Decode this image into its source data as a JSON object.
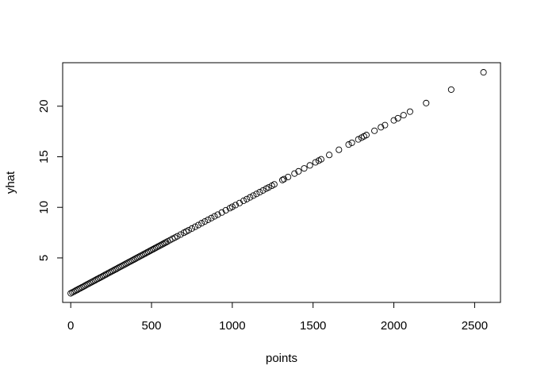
{
  "chart_data": {
    "type": "scatter",
    "title": "",
    "xlabel": "points",
    "ylabel": "yhat",
    "xlim": [
      -50,
      2660
    ],
    "ylim": [
      0.6,
      24.3
    ],
    "x_ticks": [
      0,
      500,
      1000,
      1500,
      2000,
      2500
    ],
    "y_ticks": [
      5,
      10,
      15,
      20
    ],
    "x_tick_labels": [
      "0",
      "500",
      "1000",
      "1500",
      "2000",
      "2500"
    ],
    "y_tick_labels": [
      "5",
      "10",
      "15",
      "20"
    ],
    "grid": false,
    "marker": "open-circle",
    "line": {
      "intercept": 1.5,
      "slope": 0.00855
    },
    "points": [
      [
        0,
        1.5
      ],
      [
        10,
        1.59
      ],
      [
        20,
        1.67
      ],
      [
        30,
        1.76
      ],
      [
        40,
        1.84
      ],
      [
        50,
        1.93
      ],
      [
        60,
        2.01
      ],
      [
        70,
        2.1
      ],
      [
        80,
        2.18
      ],
      [
        90,
        2.27
      ],
      [
        100,
        2.36
      ],
      [
        110,
        2.44
      ],
      [
        120,
        2.53
      ],
      [
        130,
        2.61
      ],
      [
        140,
        2.7
      ],
      [
        150,
        2.78
      ],
      [
        160,
        2.87
      ],
      [
        170,
        2.95
      ],
      [
        180,
        3.04
      ],
      [
        190,
        3.12
      ],
      [
        200,
        3.21
      ],
      [
        210,
        3.3
      ],
      [
        220,
        3.38
      ],
      [
        230,
        3.47
      ],
      [
        240,
        3.55
      ],
      [
        250,
        3.64
      ],
      [
        260,
        3.72
      ],
      [
        270,
        3.81
      ],
      [
        280,
        3.89
      ],
      [
        290,
        3.98
      ],
      [
        300,
        4.07
      ],
      [
        310,
        4.15
      ],
      [
        320,
        4.24
      ],
      [
        330,
        4.32
      ],
      [
        340,
        4.41
      ],
      [
        350,
        4.49
      ],
      [
        360,
        4.58
      ],
      [
        370,
        4.66
      ],
      [
        380,
        4.75
      ],
      [
        390,
        4.83
      ],
      [
        400,
        4.92
      ],
      [
        410,
        5.01
      ],
      [
        420,
        5.09
      ],
      [
        430,
        5.18
      ],
      [
        440,
        5.26
      ],
      [
        450,
        5.35
      ],
      [
        460,
        5.43
      ],
      [
        470,
        5.52
      ],
      [
        480,
        5.6
      ],
      [
        490,
        5.69
      ],
      [
        500,
        5.78
      ],
      [
        510,
        5.86
      ],
      [
        520,
        5.95
      ],
      [
        530,
        6.03
      ],
      [
        540,
        6.12
      ],
      [
        550,
        6.2
      ],
      [
        560,
        6.29
      ],
      [
        570,
        6.37
      ],
      [
        580,
        6.46
      ],
      [
        590,
        6.54
      ],
      [
        600,
        6.63
      ],
      [
        615,
        6.76
      ],
      [
        630,
        6.89
      ],
      [
        645,
        7.01
      ],
      [
        660,
        7.14
      ],
      [
        680,
        7.31
      ],
      [
        700,
        7.49
      ],
      [
        715,
        7.61
      ],
      [
        730,
        7.74
      ],
      [
        750,
        7.91
      ],
      [
        770,
        8.08
      ],
      [
        790,
        8.25
      ],
      [
        810,
        8.43
      ],
      [
        830,
        8.6
      ],
      [
        850,
        8.77
      ],
      [
        870,
        8.94
      ],
      [
        890,
        9.11
      ],
      [
        910,
        9.28
      ],
      [
        935,
        9.49
      ],
      [
        960,
        9.71
      ],
      [
        985,
        9.92
      ],
      [
        1000,
        10.05
      ],
      [
        1020,
        10.22
      ],
      [
        1045,
        10.43
      ],
      [
        1070,
        10.65
      ],
      [
        1090,
        10.82
      ],
      [
        1110,
        10.99
      ],
      [
        1130,
        11.16
      ],
      [
        1150,
        11.33
      ],
      [
        1170,
        11.5
      ],
      [
        1190,
        11.67
      ],
      [
        1210,
        11.85
      ],
      [
        1225,
        11.97
      ],
      [
        1245,
        12.14
      ],
      [
        1260,
        12.27
      ],
      [
        1310,
        12.7
      ],
      [
        1320,
        12.79
      ],
      [
        1345,
        13.0
      ],
      [
        1385,
        13.34
      ],
      [
        1410,
        13.56
      ],
      [
        1445,
        13.85
      ],
      [
        1480,
        14.15
      ],
      [
        1515,
        14.45
      ],
      [
        1535,
        14.62
      ],
      [
        1550,
        14.75
      ],
      [
        1600,
        15.18
      ],
      [
        1660,
        15.69
      ],
      [
        1720,
        16.21
      ],
      [
        1740,
        16.38
      ],
      [
        1780,
        16.72
      ],
      [
        1800,
        16.89
      ],
      [
        1815,
        17.02
      ],
      [
        1830,
        17.15
      ],
      [
        1880,
        17.57
      ],
      [
        1920,
        17.92
      ],
      [
        1945,
        18.13
      ],
      [
        2000,
        18.6
      ],
      [
        2025,
        18.81
      ],
      [
        2060,
        19.11
      ],
      [
        2100,
        19.46
      ],
      [
        2200,
        20.31
      ],
      [
        2355,
        21.64
      ],
      [
        2555,
        23.35
      ]
    ]
  }
}
